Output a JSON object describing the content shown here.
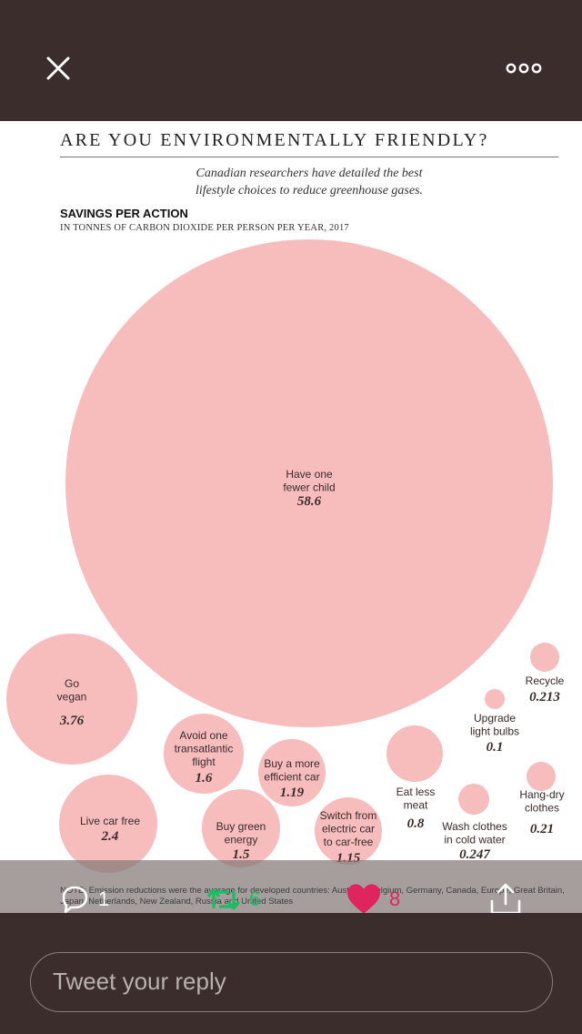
{
  "infographic": {
    "title": "ARE YOU ENVIRONMENTALLY FRIENDLY?",
    "subtitle_line1": "Canadian researchers have detailed the best",
    "subtitle_line2": "lifestyle choices to reduce greenhouse gases.",
    "section_title": "SAVINGS PER ACTION",
    "section_subtitle": "IN TONNES OF CARBON DIOXIDE PER PERSON PER YEAR, 2017",
    "note": "NOTE: Emission reductions were the average for developed countries: Australia, Belgium, Germany, Canada, Europe, Great Britain, Japan, Netherlands, New Zealand, Russia and United States"
  },
  "chart_data": {
    "type": "bubble",
    "title": "ARE YOU ENVIRONMENTALLY FRIENDLY?",
    "subtitle": "SAVINGS PER ACTION",
    "unit": "IN TONNES OF CARBON DIOXIDE PER PERSON PER YEAR, 2017",
    "color": "#f7bcbc",
    "items": [
      {
        "label": [
          "Have one",
          "fewer child"
        ],
        "value": 58.6,
        "value_text": "58.6"
      },
      {
        "label": [
          "Go",
          "vegan"
        ],
        "value": 3.76,
        "value_text": "3.76"
      },
      {
        "label": [
          "Live car free"
        ],
        "value": 2.4,
        "value_text": "2.4"
      },
      {
        "label": [
          "Avoid one",
          "transatlantic",
          "flight"
        ],
        "value": 1.6,
        "value_text": "1.6"
      },
      {
        "label": [
          "Buy green",
          "energy"
        ],
        "value": 1.5,
        "value_text": "1.5"
      },
      {
        "label": [
          "Buy a more",
          "efficient car"
        ],
        "value": 1.19,
        "value_text": "1.19"
      },
      {
        "label": [
          "Switch from",
          "electric car",
          "to car-free"
        ],
        "value": 1.15,
        "value_text": "1.15"
      },
      {
        "label": [
          "Eat less",
          "meat"
        ],
        "value": 0.8,
        "value_text": "0.8"
      },
      {
        "label": [
          "Wash clothes",
          "in cold water"
        ],
        "value": 0.247,
        "value_text": "0.247"
      },
      {
        "label": [
          "Hang-dry",
          "clothes"
        ],
        "value": 0.21,
        "value_text": "0.21"
      },
      {
        "label": [
          "Upgrade",
          "light bulbs"
        ],
        "value": 0.1,
        "value_text": "0.1"
      },
      {
        "label": [
          "Recycle"
        ],
        "value": 0.213,
        "value_text": "0.213"
      }
    ]
  },
  "actions": {
    "reply_count": "1",
    "retweet_count": "6",
    "like_count": "8"
  },
  "reply": {
    "placeholder": "Tweet your reply"
  },
  "colors": {
    "background": "#3b2d2c",
    "bubble": "#f7bcbc",
    "retweet": "#17bf63",
    "like": "#e0245e"
  },
  "icons": {
    "close": "close-icon",
    "more": "more-icon",
    "reply": "reply-icon",
    "retweet": "retweet-icon",
    "like": "heart-icon",
    "share": "share-icon"
  }
}
